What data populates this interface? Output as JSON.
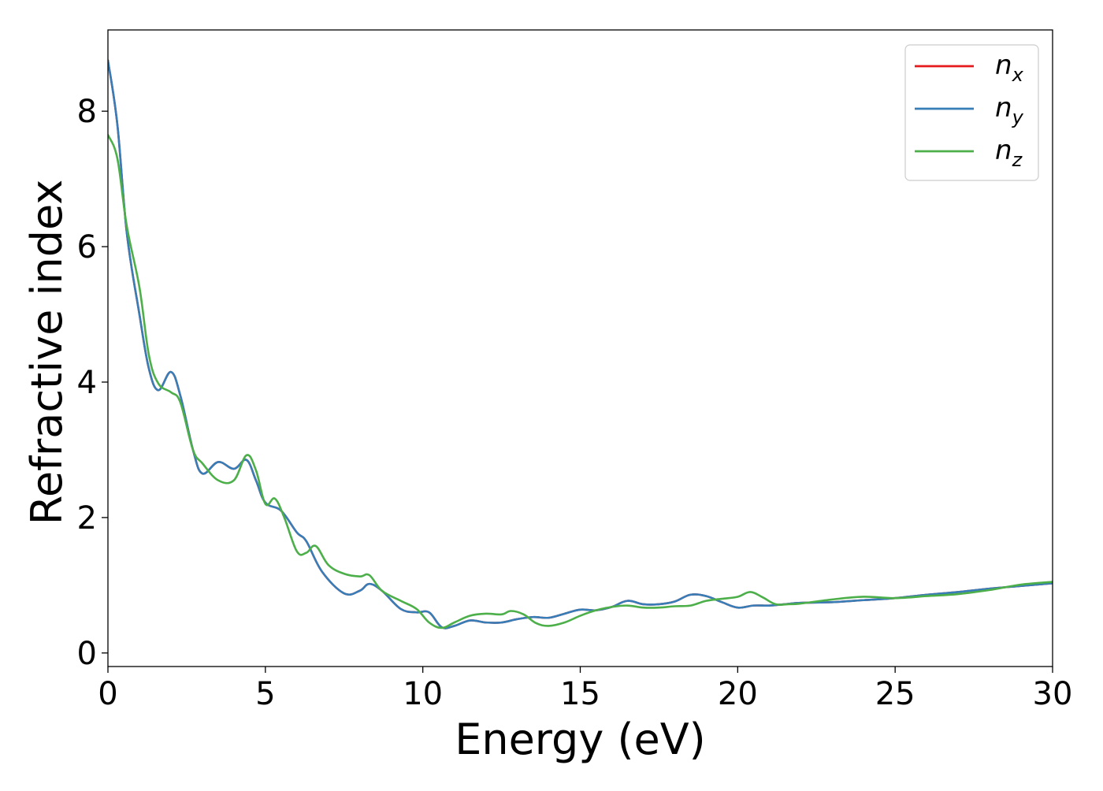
{
  "chart_data": {
    "type": "line",
    "title": "",
    "xlabel": "Energy (eV)",
    "ylabel": "Refractive index",
    "xlim": [
      0,
      30
    ],
    "ylim": [
      -0.2,
      9.2
    ],
    "xticks": [
      0,
      5,
      10,
      15,
      20,
      25,
      30
    ],
    "yticks": [
      0,
      2,
      4,
      6,
      8
    ],
    "xtick_labels": [
      "0",
      "5",
      "10",
      "15",
      "20",
      "25",
      "30"
    ],
    "ytick_labels": [
      "0",
      "2",
      "4",
      "6",
      "8"
    ],
    "grid": false,
    "legend_position": "top-right",
    "colors": {
      "n_x": "#e41a1c",
      "n_y": "#377eb8",
      "n_z": "#4daf4a"
    },
    "series": [
      {
        "name": "n_x",
        "legend_base": "n",
        "legend_sub": "x",
        "color": "#e41a1c",
        "points": [
          [
            0.0,
            8.75
          ],
          [
            0.3,
            7.8
          ],
          [
            0.6,
            6.2
          ],
          [
            1.0,
            5.0
          ],
          [
            1.3,
            4.2
          ],
          [
            1.6,
            3.88
          ],
          [
            2.0,
            4.15
          ],
          [
            2.3,
            3.8
          ],
          [
            2.7,
            3.0
          ],
          [
            3.0,
            2.65
          ],
          [
            3.5,
            2.82
          ],
          [
            4.0,
            2.72
          ],
          [
            4.4,
            2.85
          ],
          [
            4.7,
            2.55
          ],
          [
            5.0,
            2.22
          ],
          [
            5.5,
            2.1
          ],
          [
            6.0,
            1.78
          ],
          [
            6.3,
            1.65
          ],
          [
            6.8,
            1.2
          ],
          [
            7.5,
            0.88
          ],
          [
            8.0,
            0.92
          ],
          [
            8.3,
            1.02
          ],
          [
            8.7,
            0.92
          ],
          [
            9.3,
            0.65
          ],
          [
            9.8,
            0.6
          ],
          [
            10.2,
            0.6
          ],
          [
            10.6,
            0.38
          ],
          [
            11.0,
            0.4
          ],
          [
            11.5,
            0.48
          ],
          [
            12.0,
            0.45
          ],
          [
            12.5,
            0.45
          ],
          [
            13.0,
            0.5
          ],
          [
            13.5,
            0.53
          ],
          [
            14.0,
            0.52
          ],
          [
            14.5,
            0.58
          ],
          [
            15.0,
            0.64
          ],
          [
            15.5,
            0.63
          ],
          [
            16.0,
            0.68
          ],
          [
            16.5,
            0.77
          ],
          [
            17.0,
            0.72
          ],
          [
            17.5,
            0.72
          ],
          [
            18.0,
            0.76
          ],
          [
            18.5,
            0.86
          ],
          [
            19.0,
            0.84
          ],
          [
            19.5,
            0.75
          ],
          [
            20.0,
            0.67
          ],
          [
            20.5,
            0.7
          ],
          [
            21.0,
            0.7
          ],
          [
            21.5,
            0.72
          ],
          [
            22.0,
            0.74
          ],
          [
            23.0,
            0.75
          ],
          [
            24.0,
            0.78
          ],
          [
            25.0,
            0.81
          ],
          [
            26.0,
            0.86
          ],
          [
            27.0,
            0.9
          ],
          [
            28.0,
            0.95
          ],
          [
            29.0,
            0.99
          ],
          [
            30.0,
            1.03
          ]
        ]
      },
      {
        "name": "n_y",
        "legend_base": "n",
        "legend_sub": "y",
        "color": "#377eb8",
        "points": [
          [
            0.0,
            8.75
          ],
          [
            0.3,
            7.8
          ],
          [
            0.6,
            6.2
          ],
          [
            1.0,
            5.0
          ],
          [
            1.3,
            4.2
          ],
          [
            1.6,
            3.88
          ],
          [
            2.0,
            4.15
          ],
          [
            2.3,
            3.8
          ],
          [
            2.7,
            3.0
          ],
          [
            3.0,
            2.65
          ],
          [
            3.5,
            2.82
          ],
          [
            4.0,
            2.72
          ],
          [
            4.4,
            2.85
          ],
          [
            4.7,
            2.55
          ],
          [
            5.0,
            2.22
          ],
          [
            5.5,
            2.1
          ],
          [
            6.0,
            1.78
          ],
          [
            6.3,
            1.65
          ],
          [
            6.8,
            1.2
          ],
          [
            7.5,
            0.88
          ],
          [
            8.0,
            0.92
          ],
          [
            8.3,
            1.02
          ],
          [
            8.7,
            0.92
          ],
          [
            9.3,
            0.65
          ],
          [
            9.8,
            0.6
          ],
          [
            10.2,
            0.6
          ],
          [
            10.6,
            0.38
          ],
          [
            11.0,
            0.4
          ],
          [
            11.5,
            0.48
          ],
          [
            12.0,
            0.45
          ],
          [
            12.5,
            0.45
          ],
          [
            13.0,
            0.5
          ],
          [
            13.5,
            0.53
          ],
          [
            14.0,
            0.52
          ],
          [
            14.5,
            0.58
          ],
          [
            15.0,
            0.64
          ],
          [
            15.5,
            0.63
          ],
          [
            16.0,
            0.68
          ],
          [
            16.5,
            0.77
          ],
          [
            17.0,
            0.72
          ],
          [
            17.5,
            0.72
          ],
          [
            18.0,
            0.76
          ],
          [
            18.5,
            0.86
          ],
          [
            19.0,
            0.84
          ],
          [
            19.5,
            0.75
          ],
          [
            20.0,
            0.67
          ],
          [
            20.5,
            0.7
          ],
          [
            21.0,
            0.7
          ],
          [
            21.5,
            0.72
          ],
          [
            22.0,
            0.74
          ],
          [
            23.0,
            0.75
          ],
          [
            24.0,
            0.78
          ],
          [
            25.0,
            0.81
          ],
          [
            26.0,
            0.86
          ],
          [
            27.0,
            0.9
          ],
          [
            28.0,
            0.95
          ],
          [
            29.0,
            0.99
          ],
          [
            30.0,
            1.03
          ]
        ]
      },
      {
        "name": "n_z",
        "legend_base": "n",
        "legend_sub": "z",
        "color": "#4daf4a",
        "points": [
          [
            0.0,
            7.65
          ],
          [
            0.3,
            7.3
          ],
          [
            0.6,
            6.3
          ],
          [
            1.0,
            5.4
          ],
          [
            1.3,
            4.4
          ],
          [
            1.6,
            3.98
          ],
          [
            2.0,
            3.85
          ],
          [
            2.3,
            3.7
          ],
          [
            2.7,
            3.0
          ],
          [
            3.0,
            2.8
          ],
          [
            3.5,
            2.55
          ],
          [
            4.0,
            2.55
          ],
          [
            4.4,
            2.92
          ],
          [
            4.7,
            2.7
          ],
          [
            5.0,
            2.2
          ],
          [
            5.3,
            2.28
          ],
          [
            5.6,
            2.0
          ],
          [
            6.0,
            1.5
          ],
          [
            6.3,
            1.48
          ],
          [
            6.6,
            1.58
          ],
          [
            7.0,
            1.3
          ],
          [
            7.5,
            1.17
          ],
          [
            8.0,
            1.13
          ],
          [
            8.3,
            1.15
          ],
          [
            8.7,
            0.92
          ],
          [
            9.3,
            0.77
          ],
          [
            9.8,
            0.65
          ],
          [
            10.2,
            0.45
          ],
          [
            10.6,
            0.37
          ],
          [
            11.0,
            0.45
          ],
          [
            11.5,
            0.55
          ],
          [
            12.0,
            0.58
          ],
          [
            12.5,
            0.57
          ],
          [
            12.8,
            0.62
          ],
          [
            13.2,
            0.57
          ],
          [
            13.6,
            0.44
          ],
          [
            14.0,
            0.4
          ],
          [
            14.5,
            0.45
          ],
          [
            15.0,
            0.55
          ],
          [
            15.5,
            0.63
          ],
          [
            16.0,
            0.68
          ],
          [
            16.5,
            0.7
          ],
          [
            17.0,
            0.67
          ],
          [
            17.5,
            0.67
          ],
          [
            18.0,
            0.69
          ],
          [
            18.5,
            0.7
          ],
          [
            19.0,
            0.77
          ],
          [
            19.5,
            0.8
          ],
          [
            20.0,
            0.83
          ],
          [
            20.4,
            0.9
          ],
          [
            20.8,
            0.82
          ],
          [
            21.2,
            0.72
          ],
          [
            21.6,
            0.72
          ],
          [
            22.0,
            0.73
          ],
          [
            23.0,
            0.79
          ],
          [
            24.0,
            0.83
          ],
          [
            25.0,
            0.81
          ],
          [
            26.0,
            0.84
          ],
          [
            27.0,
            0.87
          ],
          [
            28.0,
            0.93
          ],
          [
            29.0,
            1.01
          ],
          [
            30.0,
            1.05
          ]
        ]
      }
    ]
  }
}
